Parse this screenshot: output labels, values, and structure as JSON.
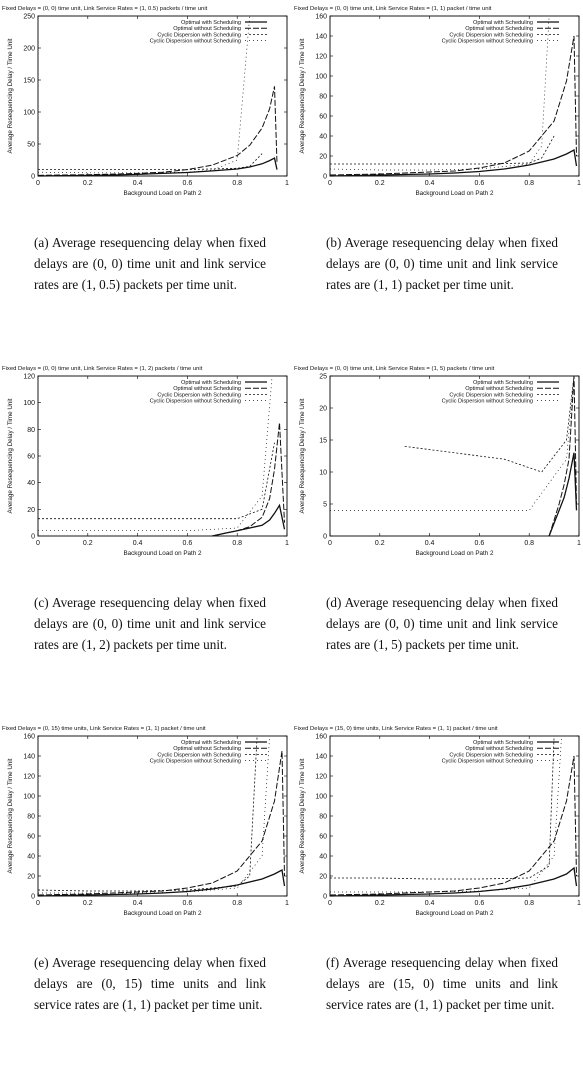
{
  "chart_data": [
    {
      "type": "line",
      "title": "Fixed Delays = (0, 0) time unit, Link Service Rates = (1, 0.5) packets / time unit",
      "xlabel": "Background Load on Path 2",
      "ylabel": "Average Resequencing Delay / Time Unit",
      "xlim": [
        0,
        1
      ],
      "ylim": [
        0,
        250
      ],
      "xticks": [
        "0",
        "0.2",
        "0.4",
        "0.6",
        "0.8",
        "1"
      ],
      "yticks": [
        "0",
        "50",
        "100",
        "150",
        "200",
        "250"
      ],
      "legend_position": "top-right",
      "caption": "(a) Average resequencing delay when fixed delays are (0, 0) time unit and link service rates are (1, 0.5) packets per time unit.",
      "series": [
        {
          "name": "Optimal with Scheduling",
          "x": [
            0.0,
            0.1,
            0.2,
            0.3,
            0.4,
            0.5,
            0.6,
            0.7,
            0.8,
            0.85,
            0.9,
            0.93,
            0.95,
            0.96
          ],
          "y": [
            0,
            0.5,
            1,
            1.5,
            2.5,
            4,
            5.5,
            8,
            11,
            14,
            19,
            24,
            28,
            10
          ]
        },
        {
          "name": "Optimal without Scheduling",
          "x": [
            0.0,
            0.1,
            0.2,
            0.3,
            0.4,
            0.5,
            0.6,
            0.7,
            0.8,
            0.85,
            0.9,
            0.93,
            0.95,
            0.96
          ],
          "y": [
            1,
            1.5,
            2,
            3,
            4,
            6,
            10,
            17,
            32,
            48,
            75,
            105,
            140,
            20
          ]
        },
        {
          "name": "Cyclic Dispersion with Scheduling",
          "x": [
            0.0,
            0.2,
            0.4,
            0.6,
            0.8,
            0.85,
            0.9
          ],
          "y": [
            10,
            10,
            10,
            10,
            12,
            15,
            35
          ]
        },
        {
          "name": "Cyclic Dispersion without Scheduling",
          "x": [
            0.0,
            0.2,
            0.4,
            0.6,
            0.7,
            0.8,
            0.85
          ],
          "y": [
            6,
            5,
            5,
            6,
            9,
            25,
            250
          ]
        }
      ]
    },
    {
      "type": "line",
      "title": "Fixed Delays = (0, 0) time unit, Link Service Rates = (1, 1) packet / time unit",
      "xlabel": "Background Load on Path 2",
      "ylabel": "Average Resequencing Delay / Time Unit",
      "xlim": [
        0,
        1
      ],
      "ylim": [
        0,
        160
      ],
      "xticks": [
        "0",
        "0.2",
        "0.4",
        "0.6",
        "0.8",
        "1"
      ],
      "yticks": [
        "0",
        "20",
        "40",
        "60",
        "80",
        "100",
        "120",
        "140",
        "160"
      ],
      "legend_position": "top-right",
      "caption": "(b) Average resequencing delay when fixed delays are (0, 0) time unit and link service rates are (1, 1) packet per time unit.",
      "series": [
        {
          "name": "Optimal with Scheduling",
          "x": [
            0.0,
            0.1,
            0.2,
            0.3,
            0.4,
            0.5,
            0.6,
            0.7,
            0.8,
            0.9,
            0.95,
            0.98,
            0.99
          ],
          "y": [
            0,
            0.5,
            1,
            1.5,
            2,
            3,
            4.5,
            7,
            11,
            17,
            22,
            26,
            10
          ]
        },
        {
          "name": "Optimal without Scheduling",
          "x": [
            0.0,
            0.1,
            0.2,
            0.3,
            0.4,
            0.5,
            0.6,
            0.7,
            0.8,
            0.9,
            0.95,
            0.98,
            0.99
          ],
          "y": [
            1,
            1.5,
            2,
            3,
            4,
            5,
            8,
            13,
            25,
            55,
            95,
            140,
            20
          ]
        },
        {
          "name": "Cyclic Dispersion with Scheduling",
          "x": [
            0.0,
            0.2,
            0.4,
            0.6,
            0.8,
            0.85,
            0.9
          ],
          "y": [
            12,
            12,
            12,
            12,
            13,
            18,
            40
          ]
        },
        {
          "name": "Cyclic Dispersion without Scheduling",
          "x": [
            0.0,
            0.2,
            0.4,
            0.6,
            0.8,
            0.85,
            0.88
          ],
          "y": [
            7,
            6,
            6,
            7,
            12,
            30,
            160
          ]
        }
      ]
    },
    {
      "type": "line",
      "title": "Fixed Delays = (0, 0) time unit, Link Service Rates = (1, 2) packets / time unit",
      "xlabel": "Background Load on Path 2",
      "ylabel": "Average Resequencing Delay / Time Unit",
      "xlim": [
        0,
        1
      ],
      "ylim": [
        0,
        120
      ],
      "xticks": [
        "0",
        "0.2",
        "0.4",
        "0.6",
        "0.8",
        "1"
      ],
      "yticks": [
        "0",
        "20",
        "40",
        "60",
        "80",
        "100",
        "120"
      ],
      "legend_position": "top-right",
      "caption": "(c) Average resequencing delay when fixed delays are (0, 0) time unit and link service rates are (1, 2) packets per time unit.",
      "series": [
        {
          "name": "Optimal with Scheduling",
          "x": [
            0.7,
            0.75,
            0.8,
            0.85,
            0.9,
            0.93,
            0.95,
            0.97,
            0.99
          ],
          "y": [
            0,
            2,
            4,
            6,
            8,
            12,
            17,
            23,
            5
          ]
        },
        {
          "name": "Optimal without Scheduling",
          "x": [
            0.7,
            0.75,
            0.8,
            0.85,
            0.9,
            0.93,
            0.95,
            0.97,
            0.99
          ],
          "y": [
            0,
            2,
            4,
            7,
            14,
            28,
            50,
            85,
            10
          ]
        },
        {
          "name": "Cyclic Dispersion with Scheduling",
          "x": [
            0.0,
            0.2,
            0.4,
            0.6,
            0.8,
            0.9,
            0.95
          ],
          "y": [
            13,
            13,
            13,
            13,
            13,
            20,
            70
          ]
        },
        {
          "name": "Cyclic Dispersion without Scheduling",
          "x": [
            0.0,
            0.2,
            0.4,
            0.6,
            0.8,
            0.9,
            0.94
          ],
          "y": [
            4,
            4,
            4,
            4,
            6,
            30,
            120
          ]
        }
      ]
    },
    {
      "type": "line",
      "title": "Fixed Delays = (0, 0) time unit, Link Service Rates = (1, 5) packets / time unit",
      "xlabel": "Background Load on Path 2",
      "ylabel": "Average Resequencing Delay / Time Unit",
      "xlim": [
        0,
        1
      ],
      "ylim": [
        0,
        25
      ],
      "xticks": [
        "0",
        "0.2",
        "0.4",
        "0.6",
        "0.8",
        "1"
      ],
      "yticks": [
        "0",
        "5",
        "10",
        "15",
        "20",
        "25"
      ],
      "legend_position": "top-right",
      "caption": "(d) Average resequencing delay when fixed delays are (0, 0) time unit and link service rates are (1, 5) packets per time unit.",
      "series": [
        {
          "name": "Optimal with Scheduling",
          "x": [
            0.88,
            0.9,
            0.92,
            0.94,
            0.96,
            0.98,
            0.99
          ],
          "y": [
            0,
            2,
            4,
            6,
            9,
            13,
            4
          ]
        },
        {
          "name": "Optimal without Scheduling",
          "x": [
            0.88,
            0.9,
            0.92,
            0.94,
            0.96,
            0.98,
            0.99
          ],
          "y": [
            0,
            2.5,
            5,
            8,
            12,
            25,
            5
          ]
        },
        {
          "name": "Cyclic Dispersion with Scheduling",
          "x": [
            0.3,
            0.5,
            0.7,
            0.85,
            0.95,
            0.98
          ],
          "y": [
            14,
            13,
            12,
            10,
            15,
            25
          ]
        },
        {
          "name": "Cyclic Dispersion without Scheduling",
          "x": [
            0.0,
            0.2,
            0.4,
            0.6,
            0.8,
            0.95,
            0.98
          ],
          "y": [
            4,
            4,
            4,
            4,
            4,
            12,
            25
          ]
        }
      ]
    },
    {
      "type": "line",
      "title": "Fixed Delays = (0, 15) time units, Link Service Rates = (1, 1) packet / time unit",
      "xlabel": "Background Load on Path 2",
      "ylabel": "Average Resequencing Delay / Time Unit",
      "xlim": [
        0,
        1
      ],
      "ylim": [
        0,
        160
      ],
      "xticks": [
        "0",
        "0.2",
        "0.4",
        "0.6",
        "0.8",
        "1"
      ],
      "yticks": [
        "0",
        "20",
        "40",
        "60",
        "80",
        "100",
        "120",
        "140",
        "160"
      ],
      "legend_position": "top-right",
      "caption": "(e) Average resequencing delay when fixed delays are (0, 15) time units and link service rates are (1, 1) packet per time unit.",
      "series": [
        {
          "name": "Optimal with Scheduling",
          "x": [
            0.0,
            0.1,
            0.2,
            0.3,
            0.4,
            0.5,
            0.6,
            0.7,
            0.8,
            0.9,
            0.95,
            0.98,
            0.99
          ],
          "y": [
            0,
            0.5,
            1,
            1.5,
            2,
            3,
            4.5,
            7,
            11,
            17,
            22,
            26,
            10
          ]
        },
        {
          "name": "Optimal without Scheduling",
          "x": [
            0.0,
            0.1,
            0.2,
            0.3,
            0.4,
            0.5,
            0.6,
            0.7,
            0.8,
            0.9,
            0.95,
            0.98,
            0.99
          ],
          "y": [
            1,
            1.5,
            2,
            3,
            4,
            5,
            8,
            13,
            25,
            55,
            95,
            145,
            20
          ]
        },
        {
          "name": "Cyclic Dispersion with Scheduling",
          "x": [
            0.0,
            0.2,
            0.4,
            0.6,
            0.8,
            0.85,
            0.88
          ],
          "y": [
            6,
            5,
            5,
            6,
            10,
            20,
            160
          ]
        },
        {
          "name": "Cyclic Dispersion without Scheduling",
          "x": [
            0.0,
            0.2,
            0.4,
            0.6,
            0.8,
            0.9,
            0.93
          ],
          "y": [
            3,
            3,
            3,
            4,
            8,
            40,
            160
          ]
        }
      ]
    },
    {
      "type": "line",
      "title": "Fixed Delays = (15, 0) time units, Link Service Rates = (1, 1) packet / time unit",
      "xlabel": "Background Load on Path 2",
      "ylabel": "Average Resequencing Delay / Time Unit",
      "xlim": [
        0,
        1
      ],
      "ylim": [
        0,
        160
      ],
      "xticks": [
        "0",
        "0.2",
        "0.4",
        "0.6",
        "0.8",
        "1"
      ],
      "yticks": [
        "0",
        "20",
        "40",
        "60",
        "80",
        "100",
        "120",
        "140",
        "160"
      ],
      "legend_position": "top-right",
      "caption": "(f) Average resequencing delay when fixed delays are (15, 0) time units and link service rates are (1, 1) packet per time unit.",
      "series": [
        {
          "name": "Optimal with Scheduling",
          "x": [
            0.0,
            0.1,
            0.2,
            0.3,
            0.4,
            0.5,
            0.6,
            0.7,
            0.8,
            0.9,
            0.95,
            0.98,
            0.99
          ],
          "y": [
            0,
            0.5,
            1,
            1.5,
            2,
            3,
            4.5,
            7,
            11,
            17,
            22,
            28,
            10
          ]
        },
        {
          "name": "Optimal without Scheduling",
          "x": [
            0.0,
            0.1,
            0.2,
            0.3,
            0.4,
            0.5,
            0.6,
            0.7,
            0.8,
            0.9,
            0.95,
            0.98,
            0.99
          ],
          "y": [
            1,
            1.5,
            2,
            3,
            4,
            5,
            8,
            13,
            25,
            55,
            95,
            140,
            20
          ]
        },
        {
          "name": "Cyclic Dispersion with Scheduling",
          "x": [
            0.0,
            0.2,
            0.4,
            0.6,
            0.8,
            0.88,
            0.9
          ],
          "y": [
            18,
            18,
            17,
            17,
            18,
            30,
            160
          ]
        },
        {
          "name": "Cyclic Dispersion without Scheduling",
          "x": [
            0.0,
            0.2,
            0.4,
            0.6,
            0.8,
            0.9,
            0.93
          ],
          "y": [
            4,
            4,
            4,
            5,
            8,
            40,
            160
          ]
        }
      ]
    }
  ]
}
